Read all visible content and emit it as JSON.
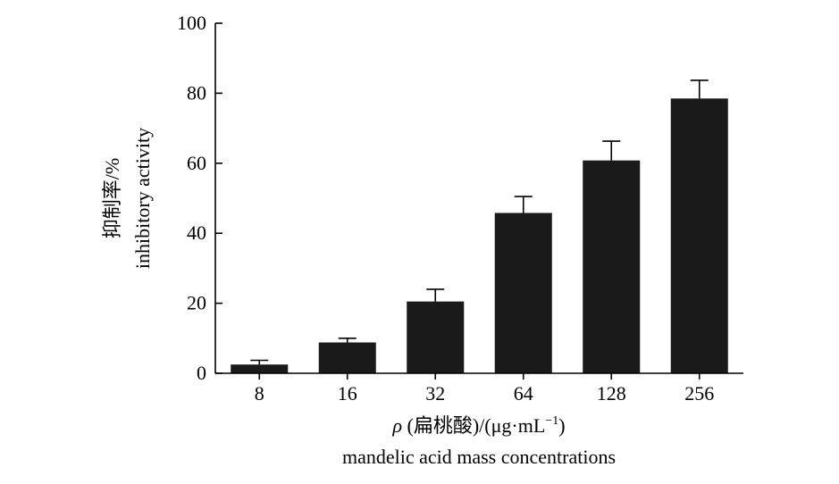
{
  "chart_data": {
    "type": "bar",
    "categories": [
      "8",
      "16",
      "32",
      "64",
      "128",
      "256"
    ],
    "values": [
      2.5,
      8.8,
      20.5,
      45.8,
      60.8,
      78.5
    ],
    "errors": [
      1.2,
      1.2,
      3.5,
      4.7,
      5.5,
      5.2
    ],
    "ylim": [
      0,
      100
    ],
    "yticks": [
      0,
      20,
      40,
      60,
      80,
      100
    ],
    "ylabel_cn": "抑制率/%",
    "ylabel_en": "inhibitory activity",
    "xlabel_rho": "ρ",
    "xlabel_cn": " (扁桃酸)/(μg·mL",
    "xlabel_sup": "−1",
    "xlabel_close": ")",
    "xlabel_en": "mandelic acid mass concentrations",
    "bar_color": "#1a1a1a",
    "grid": false
  }
}
